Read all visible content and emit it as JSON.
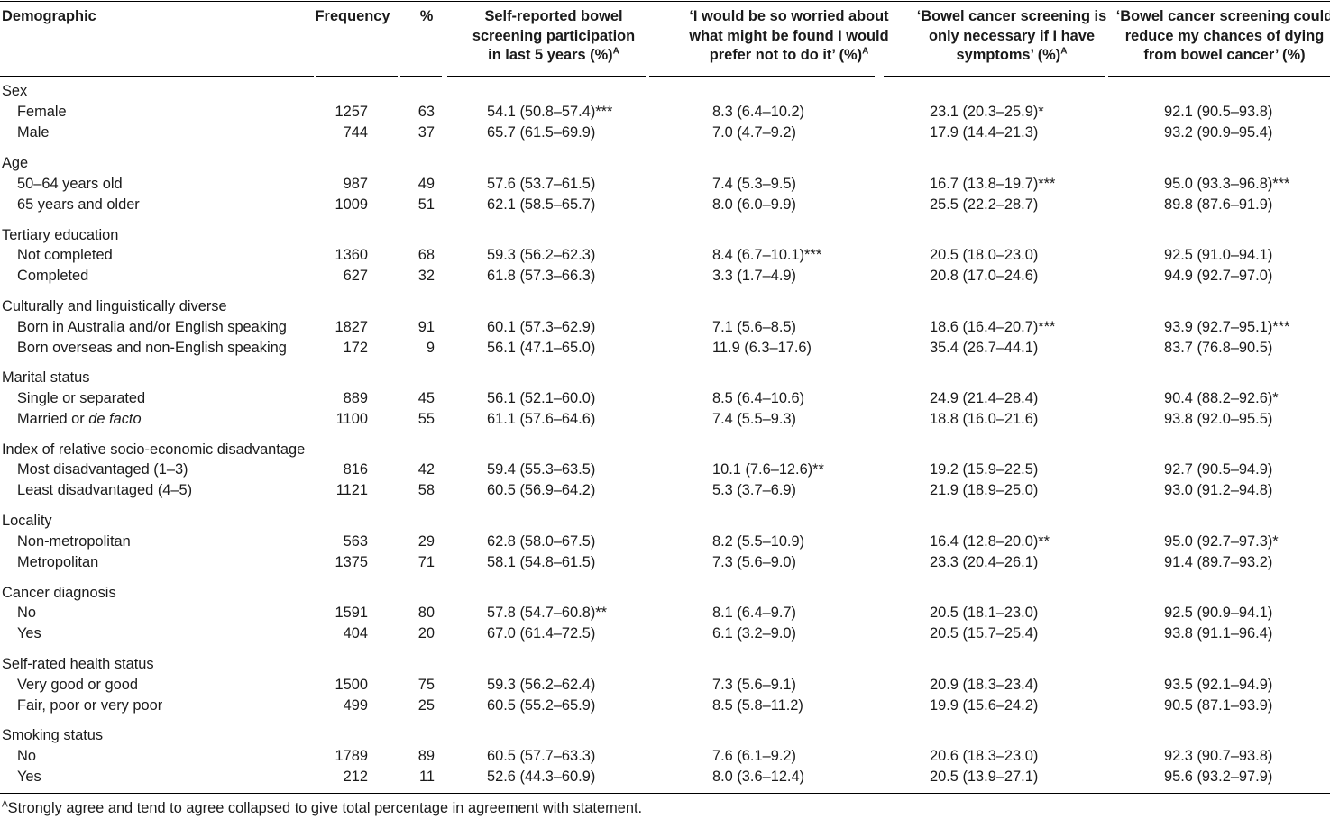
{
  "header": {
    "demographic": "Demographic",
    "frequency": "Frequency",
    "pct": "%",
    "col1": [
      "Self-reported bowel",
      "screening participation",
      "in last 5 years (%)"
    ],
    "col1_sup": "A",
    "col2": [
      "‘I would be so worried about",
      "what might be found I would",
      "prefer not to do it’ (%)"
    ],
    "col2_sup": "A",
    "col3": [
      "‘Bowel cancer screening is",
      "only necessary if I have",
      "symptoms’ (%)"
    ],
    "col3_sup": "A",
    "col4": [
      "‘Bowel cancer screening could",
      "reduce my chances of dying",
      "from bowel cancer’ (%)"
    ]
  },
  "rows": [
    {
      "type": "group",
      "label": "Sex"
    },
    {
      "type": "row",
      "label": "Female",
      "freq": "1257",
      "pct": "63",
      "c1": "54.1 (50.8–57.4)***",
      "c2": "8.3 (6.4–10.2)",
      "c3": "23.1 (20.3–25.9)*",
      "c4": "92.1 (90.5–93.8)"
    },
    {
      "type": "row",
      "label": "Male",
      "freq": "744",
      "pct": "37",
      "c1": "65.7 (61.5–69.9)",
      "c2": "7.0 (4.7–9.2)",
      "c3": "17.9 (14.4–21.3)",
      "c4": "93.2 (90.9–95.4)"
    },
    {
      "type": "group",
      "label": "Age"
    },
    {
      "type": "row",
      "label": "50–64 years old",
      "freq": "987",
      "pct": "49",
      "c1": "57.6 (53.7–61.5)",
      "c2": "7.4 (5.3–9.5)",
      "c3": "16.7 (13.8–19.7)***",
      "c4": "95.0 (93.3–96.8)***"
    },
    {
      "type": "row",
      "label": "65 years and older",
      "freq": "1009",
      "pct": "51",
      "c1": "62.1 (58.5–65.7)",
      "c2": "8.0 (6.0–9.9)",
      "c3": "25.5 (22.2–28.7)",
      "c4": "89.8 (87.6–91.9)"
    },
    {
      "type": "group",
      "label": "Tertiary education"
    },
    {
      "type": "row",
      "label": "Not completed",
      "freq": "1360",
      "pct": "68",
      "c1": "59.3 (56.2–62.3)",
      "c2": "8.4 (6.7–10.1)***",
      "c3": "20.5 (18.0–23.0)",
      "c4": "92.5 (91.0–94.1)"
    },
    {
      "type": "row",
      "label": "Completed",
      "freq": "627",
      "pct": "32",
      "c1": "61.8 (57.3–66.3)",
      "c2": "3.3 (1.7–4.9)",
      "c3": "20.8 (17.0–24.6)",
      "c4": "94.9 (92.7–97.0)"
    },
    {
      "type": "group",
      "label": "Culturally and linguistically diverse"
    },
    {
      "type": "row",
      "label": "Born in Australia and/or English speaking",
      "freq": "1827",
      "pct": "91",
      "c1": "60.1 (57.3–62.9)",
      "c2": "7.1 (5.6–8.5)",
      "c3": "18.6 (16.4–20.7)***",
      "c4": "93.9 (92.7–95.1)***"
    },
    {
      "type": "row",
      "label": "Born overseas and non-English speaking",
      "freq": "172",
      "pct": "9",
      "c1": "56.1 (47.1–65.0)",
      "c2": "11.9 (6.3–17.6)",
      "c3": "35.4 (26.7–44.1)",
      "c4": "83.7 (76.8–90.5)"
    },
    {
      "type": "group",
      "label": "Marital status"
    },
    {
      "type": "row",
      "label": "Single or separated",
      "freq": "889",
      "pct": "45",
      "c1": "56.1 (52.1–60.0)",
      "c2": "8.5 (6.4–10.6)",
      "c3": "24.9 (21.4–28.4)",
      "c4": "90.4 (88.2–92.6)*"
    },
    {
      "type": "row",
      "label": "Married or ",
      "label_italic": "de facto",
      "freq": "1100",
      "pct": "55",
      "c1": "61.1 (57.6–64.6)",
      "c2": "7.4 (5.5–9.3)",
      "c3": "18.8 (16.0–21.6)",
      "c4": "93.8 (92.0–95.5)"
    },
    {
      "type": "group",
      "label": "Index of relative socio-economic disadvantage"
    },
    {
      "type": "row",
      "label": "Most disadvantaged (1–3)",
      "freq": "816",
      "pct": "42",
      "c1": "59.4 (55.3–63.5)",
      "c2": "10.1 (7.6–12.6)**",
      "c3": "19.2 (15.9–22.5)",
      "c4": "92.7 (90.5–94.9)"
    },
    {
      "type": "row",
      "label": "Least disadvantaged (4–5)",
      "freq": "1121",
      "pct": "58",
      "c1": "60.5 (56.9–64.2)",
      "c2": "5.3 (3.7–6.9)",
      "c3": "21.9 (18.9–25.0)",
      "c4": "93.0 (91.2–94.8)"
    },
    {
      "type": "group",
      "label": "Locality"
    },
    {
      "type": "row",
      "label": "Non-metropolitan",
      "freq": "563",
      "pct": "29",
      "c1": "62.8 (58.0–67.5)",
      "c2": "8.2 (5.5–10.9)",
      "c3": "16.4 (12.8–20.0)**",
      "c4": "95.0 (92.7–97.3)*"
    },
    {
      "type": "row",
      "label": "Metropolitan",
      "freq": "1375",
      "pct": "71",
      "c1": "58.1 (54.8–61.5)",
      "c2": "7.3 (5.6–9.0)",
      "c3": "23.3 (20.4–26.1)",
      "c4": "91.4 (89.7–93.2)"
    },
    {
      "type": "group",
      "label": "Cancer diagnosis"
    },
    {
      "type": "row",
      "label": "No",
      "freq": "1591",
      "pct": "80",
      "c1": "57.8 (54.7–60.8)**",
      "c2": "8.1 (6.4–9.7)",
      "c3": "20.5 (18.1–23.0)",
      "c4": "92.5 (90.9–94.1)"
    },
    {
      "type": "row",
      "label": "Yes",
      "freq": "404",
      "pct": "20",
      "c1": "67.0 (61.4–72.5)",
      "c2": "6.1 (3.2–9.0)",
      "c3": "20.5 (15.7–25.4)",
      "c4": "93.8 (91.1–96.4)"
    },
    {
      "type": "group",
      "label": "Self-rated health status"
    },
    {
      "type": "row",
      "label": "Very good or good",
      "freq": "1500",
      "pct": "75",
      "c1": "59.3 (56.2–62.4)",
      "c2": "7.3 (5.6–9.1)",
      "c3": "20.9 (18.3–23.4)",
      "c4": "93.5 (92.1–94.9)"
    },
    {
      "type": "row",
      "label": "Fair, poor or very poor",
      "freq": "499",
      "pct": "25",
      "c1": "60.5 (55.2–65.9)",
      "c2": "8.5 (5.8–11.2)",
      "c3": "19.9 (15.6–24.2)",
      "c4": "90.5 (87.1–93.9)"
    },
    {
      "type": "group",
      "label": "Smoking status"
    },
    {
      "type": "row",
      "label": "No",
      "freq": "1789",
      "pct": "89",
      "c1": "60.5 (57.7–63.3)",
      "c2": "7.6 (6.1–9.2)",
      "c3": "20.6 (18.3–23.0)",
      "c4": "92.3 (90.7–93.8)"
    },
    {
      "type": "row",
      "label": "Yes",
      "freq": "212",
      "pct": "11",
      "c1": "52.6 (44.3–60.9)",
      "c2": "8.0 (3.6–12.4)",
      "c3": "20.5 (13.9–27.1)",
      "c4": "95.6 (93.2–97.9)"
    }
  ],
  "footnote": {
    "sup": "A",
    "text": "Strongly agree and tend to agree collapsed to give total percentage in agreement with statement."
  }
}
